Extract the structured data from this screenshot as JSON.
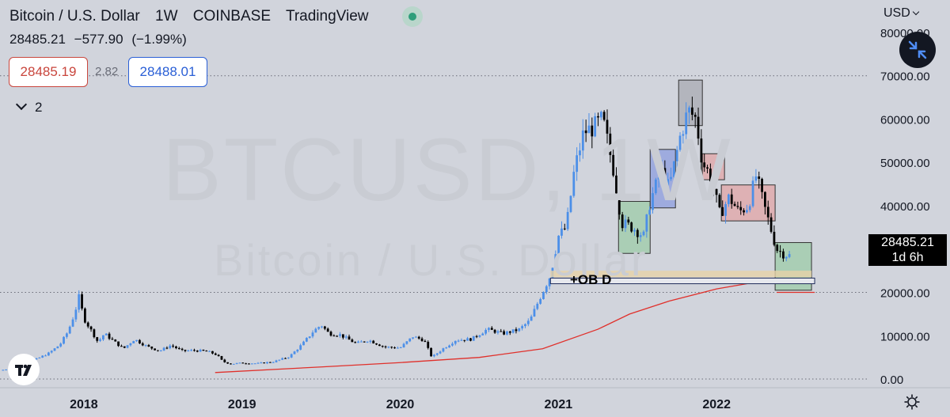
{
  "header": {
    "symbol": "Bitcoin / U.S. Dollar",
    "interval": "1W",
    "exchange": "COINBASE",
    "source": "TradingView"
  },
  "ohlc_line": {
    "price": "28485.21",
    "change": "−577.90",
    "change_pct": "(−1.99%)"
  },
  "quote": {
    "bid": "28485.19",
    "spread": "2.82",
    "ask": "28488.01"
  },
  "indicators_toggle": "2",
  "currency": "USD",
  "current_price_label": {
    "price": "28485.21",
    "countdown": "1d 6h"
  },
  "watermark": {
    "ticker": "BTCUSD, 1W",
    "name": "Bitcoin / U.S. Dollar"
  },
  "annotation": "+OB D",
  "colors": {
    "background": "#d1d4dc",
    "up_candle": "#4c8fe8",
    "down_candle": "#000000",
    "moving_average": "#e0302b",
    "box_green": "#8fc99b",
    "box_blue": "#7b8fe0",
    "box_gray": "#9ea0a8",
    "box_red": "#e69a9a",
    "zone_tan": "#e7d2a8"
  },
  "icons": {
    "fullscreen": "collapse-arrows-icon",
    "settings": "gear-icon",
    "logo": "tradingview-logo",
    "live": "market-open-dot-icon"
  },
  "chart_data": {
    "type": "candlestick",
    "title": "Bitcoin / U.S. Dollar",
    "interval": "1W",
    "y_ticks": [
      "0.00",
      "10000.00",
      "20000.00",
      "30000.00",
      "40000.00",
      "50000.00",
      "60000.00",
      "70000.00",
      "80000.00"
    ],
    "x_ticks": [
      "2018",
      "2019",
      "2020",
      "2021",
      "2022"
    ],
    "ylim": [
      -2000,
      82000
    ],
    "x_tick_dates": [
      2018.0,
      2019.0,
      2020.0,
      2021.0,
      2022.0
    ],
    "xlim": [
      2017.47,
      2022.95
    ],
    "dotted_levels": [
      70000,
      20000,
      0
    ],
    "price_path": [
      [
        2017.47,
        2000
      ],
      [
        2017.55,
        2500
      ],
      [
        2017.62,
        4000
      ],
      [
        2017.7,
        4600
      ],
      [
        2017.78,
        6000
      ],
      [
        2017.85,
        8000
      ],
      [
        2017.9,
        11000
      ],
      [
        2017.94,
        15000
      ],
      [
        2017.97,
        19000
      ],
      [
        2018.0,
        14000
      ],
      [
        2018.05,
        11000
      ],
      [
        2018.09,
        8500
      ],
      [
        2018.13,
        10500
      ],
      [
        2018.18,
        9000
      ],
      [
        2018.25,
        7000
      ],
      [
        2018.32,
        9200
      ],
      [
        2018.4,
        7500
      ],
      [
        2018.48,
        6500
      ],
      [
        2018.55,
        7800
      ],
      [
        2018.62,
        6500
      ],
      [
        2018.7,
        6600
      ],
      [
        2018.78,
        6400
      ],
      [
        2018.84,
        5600
      ],
      [
        2018.88,
        4000
      ],
      [
        2018.93,
        3500
      ],
      [
        2019.0,
        3700
      ],
      [
        2019.1,
        3600
      ],
      [
        2019.2,
        4000
      ],
      [
        2019.3,
        5200
      ],
      [
        2019.38,
        8000
      ],
      [
        2019.45,
        11000
      ],
      [
        2019.5,
        12500
      ],
      [
        2019.55,
        10500
      ],
      [
        2019.62,
        10200
      ],
      [
        2019.72,
        8200
      ],
      [
        2019.8,
        9000
      ],
      [
        2019.9,
        7400
      ],
      [
        2020.0,
        7200
      ],
      [
        2020.08,
        9800
      ],
      [
        2020.15,
        9000
      ],
      [
        2020.2,
        5000
      ],
      [
        2020.27,
        7000
      ],
      [
        2020.35,
        9000
      ],
      [
        2020.45,
        9200
      ],
      [
        2020.55,
        11500
      ],
      [
        2020.65,
        10500
      ],
      [
        2020.75,
        11400
      ],
      [
        2020.82,
        13500
      ],
      [
        2020.88,
        18500
      ],
      [
        2020.95,
        24000
      ],
      [
        2021.0,
        33000
      ],
      [
        2021.05,
        35000
      ],
      [
        2021.1,
        48000
      ],
      [
        2021.16,
        57000
      ],
      [
        2021.22,
        58000
      ],
      [
        2021.28,
        60000
      ],
      [
        2021.35,
        48000
      ],
      [
        2021.4,
        36000
      ],
      [
        2021.47,
        35000
      ],
      [
        2021.54,
        33000
      ],
      [
        2021.58,
        41000
      ],
      [
        2021.65,
        48000
      ],
      [
        2021.7,
        44000
      ],
      [
        2021.77,
        56000
      ],
      [
        2021.82,
        62000
      ],
      [
        2021.87,
        60000
      ],
      [
        2021.91,
        50000
      ],
      [
        2021.96,
        47000
      ],
      [
        2022.02,
        38000
      ],
      [
        2022.08,
        42000
      ],
      [
        2022.14,
        38500
      ],
      [
        2022.2,
        40000
      ],
      [
        2022.25,
        47000
      ],
      [
        2022.3,
        40000
      ],
      [
        2022.34,
        35000
      ],
      [
        2022.38,
        30000
      ],
      [
        2022.42,
        29000
      ],
      [
        2022.46,
        28485
      ]
    ],
    "series": [
      {
        "type": "line",
        "points": [
          [
            2018.83,
            1500
          ],
          [
            2019.5,
            2800
          ],
          [
            2020.0,
            3800
          ],
          [
            2020.5,
            5000
          ],
          [
            2020.9,
            7000
          ],
          [
            2021.25,
            11500
          ],
          [
            2021.45,
            15000
          ],
          [
            2021.7,
            18000
          ],
          [
            2022.0,
            20800
          ],
          [
            2022.3,
            22700
          ],
          [
            2022.4,
            23200
          ]
        ]
      }
    ],
    "boxes": [
      {
        "color": "green",
        "x0": 2021.38,
        "x1": 2021.58,
        "y0": 29000,
        "y1": 41000
      },
      {
        "color": "blue",
        "x0": 2021.58,
        "x1": 2021.74,
        "y0": 39500,
        "y1": 53000
      },
      {
        "color": "gray",
        "x0": 2021.76,
        "x1": 2021.91,
        "y0": 58500,
        "y1": 69000
      },
      {
        "color": "red",
        "x0": 2021.91,
        "x1": 2022.05,
        "y0": 46000,
        "y1": 52000
      },
      {
        "color": "red",
        "x0": 2022.03,
        "x1": 2022.37,
        "y0": 36500,
        "y1": 44800
      },
      {
        "color": "green",
        "x0": 2022.37,
        "x1": 2022.6,
        "y0": 20500,
        "y1": 31500
      }
    ],
    "zones": [
      {
        "color": "tan",
        "x0": 2020.95,
        "x1": 2022.6,
        "y0": 23500,
        "y1": 25000
      },
      {
        "color": "white-outline",
        "x0": 2020.95,
        "x1": 2022.62,
        "y0": 22000,
        "y1": 23300
      }
    ],
    "ob_line": {
      "x0": 2022.38,
      "x1": 2022.62,
      "y": 20000
    }
  }
}
